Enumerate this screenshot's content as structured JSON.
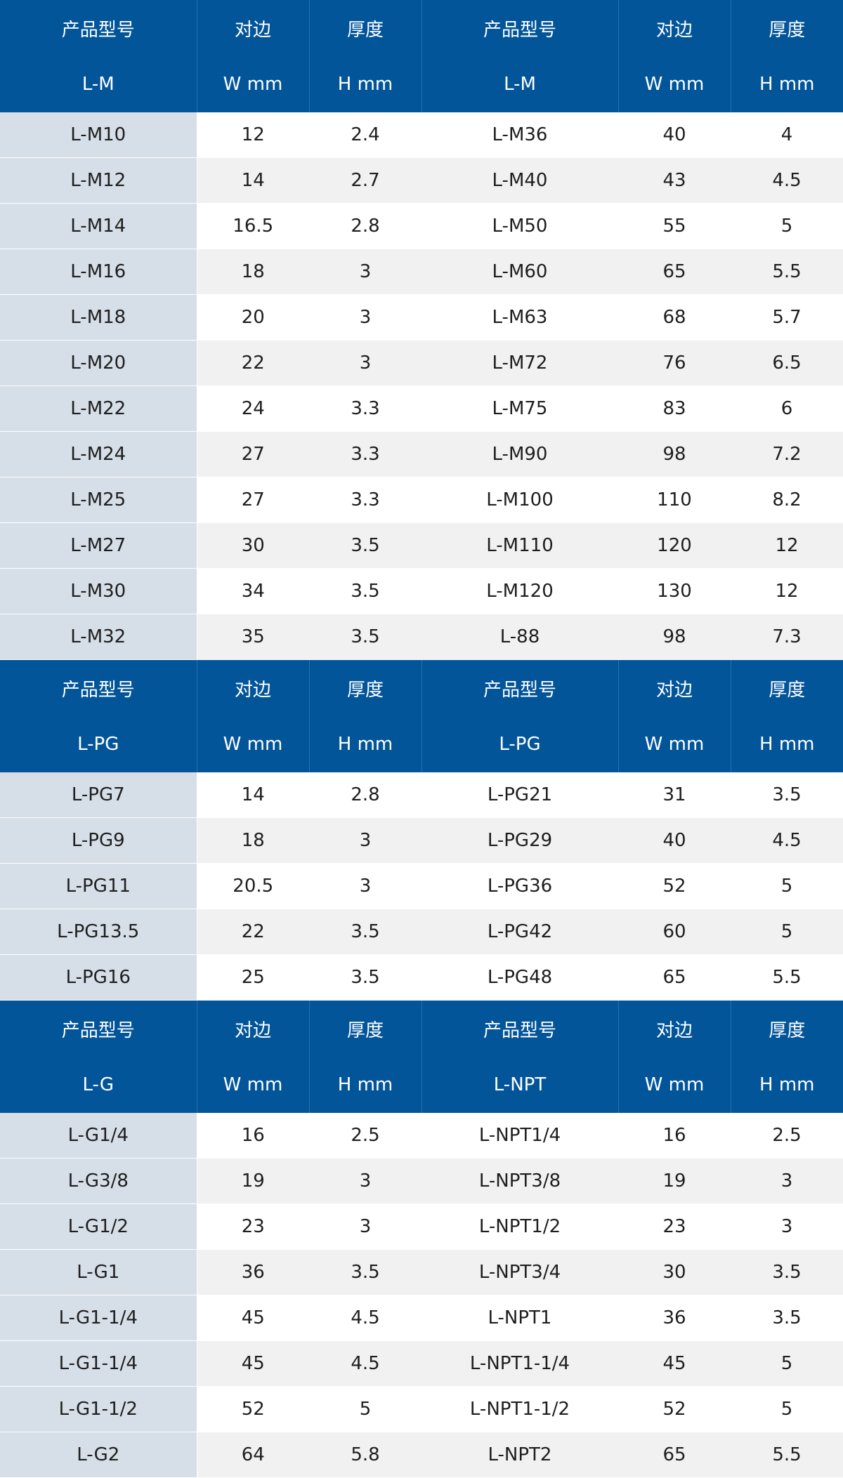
{
  "colors": {
    "header_bg": "#03559a",
    "model_bg": "#d6dee7",
    "stripe_bg": "#f1f1f1"
  },
  "sections": [
    {
      "header": {
        "model": "产品型号",
        "width": "对边",
        "thickness": "厚度"
      },
      "left_series": "L-M",
      "right_series": "L-M",
      "units": {
        "width": "W mm",
        "thickness": "H mm"
      },
      "rows": [
        [
          "L-M10",
          "12",
          "2.4",
          "L-M36",
          "40",
          "4"
        ],
        [
          "L-M12",
          "14",
          "2.7",
          "L-M40",
          "43",
          "4.5"
        ],
        [
          "L-M14",
          "16.5",
          "2.8",
          "L-M50",
          "55",
          "5"
        ],
        [
          "L-M16",
          "18",
          "3",
          "L-M60",
          "65",
          "5.5"
        ],
        [
          "L-M18",
          "20",
          "3",
          "L-M63",
          "68",
          "5.7"
        ],
        [
          "L-M20",
          "22",
          "3",
          "L-M72",
          "76",
          "6.5"
        ],
        [
          "L-M22",
          "24",
          "3.3",
          "L-M75",
          "83",
          "6"
        ],
        [
          "L-M24",
          "27",
          "3.3",
          "L-M90",
          "98",
          "7.2"
        ],
        [
          "L-M25",
          "27",
          "3.3",
          "L-M100",
          "110",
          "8.2"
        ],
        [
          "L-M27",
          "30",
          "3.5",
          "L-M110",
          "120",
          "12"
        ],
        [
          "L-M30",
          "34",
          "3.5",
          "L-M120",
          "130",
          "12"
        ],
        [
          "L-M32",
          "35",
          "3.5",
          "L-88",
          "98",
          "7.3"
        ]
      ]
    },
    {
      "header": {
        "model": "产品型号",
        "width": "对边",
        "thickness": "厚度"
      },
      "left_series": "L-PG",
      "right_series": "L-PG",
      "units": {
        "width": "W mm",
        "thickness": "H mm"
      },
      "rows": [
        [
          "L-PG7",
          "14",
          "2.8",
          "L-PG21",
          "31",
          "3.5"
        ],
        [
          "L-PG9",
          "18",
          "3",
          "L-PG29",
          "40",
          "4.5"
        ],
        [
          "L-PG11",
          "20.5",
          "3",
          "L-PG36",
          "52",
          "5"
        ],
        [
          "L-PG13.5",
          "22",
          "3.5",
          "L-PG42",
          "60",
          "5"
        ],
        [
          "L-PG16",
          "25",
          "3.5",
          "L-PG48",
          "65",
          "5.5"
        ]
      ]
    },
    {
      "header": {
        "model": "产品型号",
        "width": "对边",
        "thickness": "厚度"
      },
      "left_series": "L-G",
      "right_series": "L-NPT",
      "units": {
        "width": "W mm",
        "thickness": "H mm"
      },
      "rows": [
        [
          "L-G1/4",
          "16",
          "2.5",
          "L-NPT1/4",
          "16",
          "2.5"
        ],
        [
          "L-G3/8",
          "19",
          "3",
          "L-NPT3/8",
          "19",
          "3"
        ],
        [
          "L-G1/2",
          "23",
          "3",
          "L-NPT1/2",
          "23",
          "3"
        ],
        [
          "L-G1",
          "36",
          "3.5",
          "L-NPT3/4",
          "30",
          "3.5"
        ],
        [
          "L-G1-1/4",
          "45",
          "4.5",
          "L-NPT1",
          "36",
          "3.5"
        ],
        [
          "L-G1-1/4",
          "45",
          "4.5",
          "L-NPT1-1/4",
          "45",
          "5"
        ],
        [
          "L-G1-1/2",
          "52",
          "5",
          "L-NPT1-1/2",
          "52",
          "5"
        ],
        [
          "L-G2",
          "64",
          "5.8",
          "L-NPT2",
          "65",
          "5.5"
        ]
      ]
    }
  ]
}
